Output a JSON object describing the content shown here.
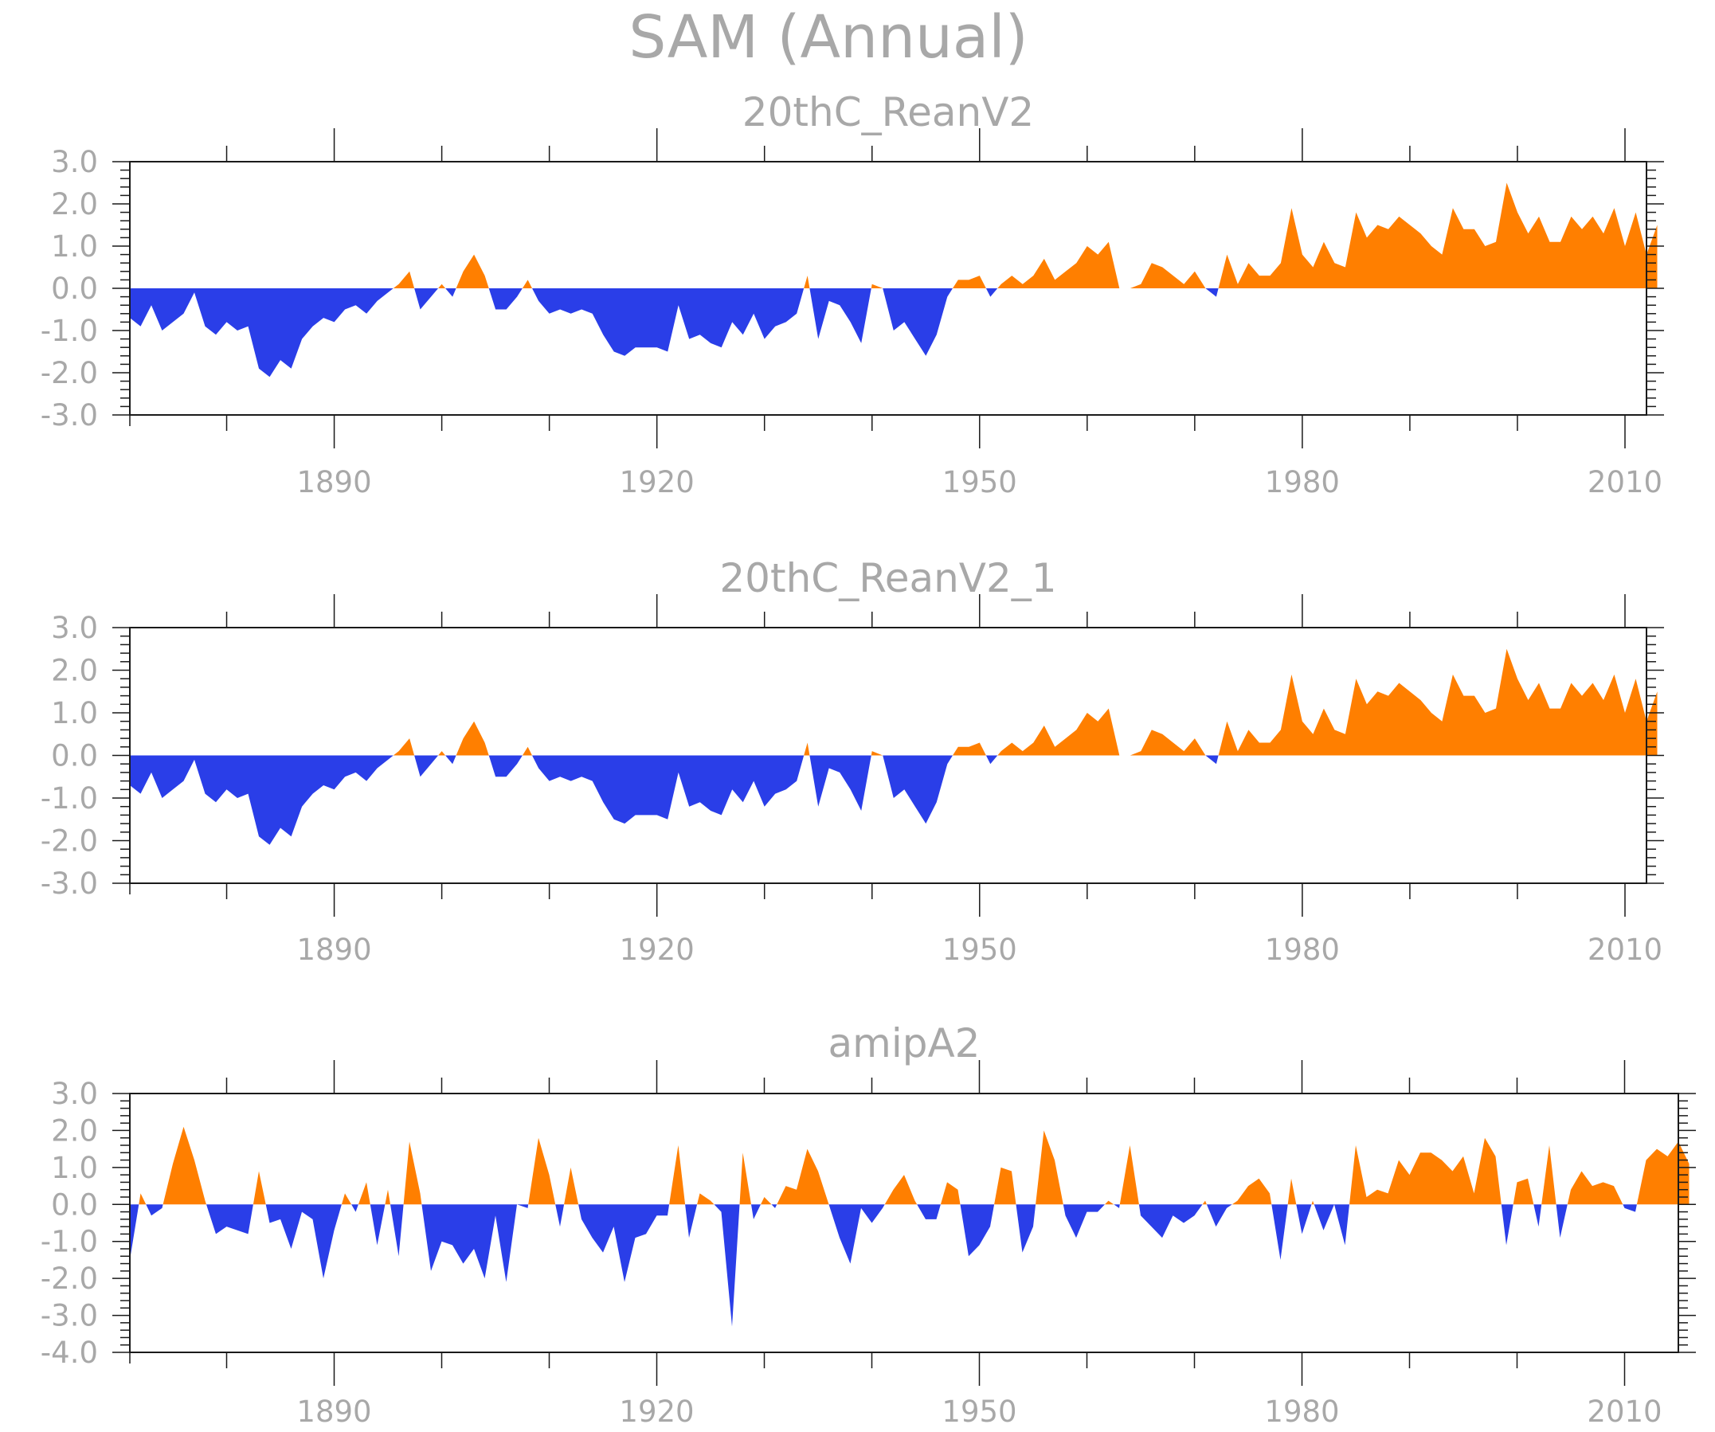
{
  "title": "SAM  (Annual)",
  "colors": {
    "positive": "#ff7f00",
    "negative": "#2a3ee8",
    "text": "#a8a8a8",
    "axis": "#1a1a1a"
  },
  "chart_data": [
    {
      "type": "area",
      "title": "20thC_ReanV2",
      "x_start": 1871,
      "x_ticks": [
        1890,
        1920,
        1950,
        1980,
        2010
      ],
      "x_tick_labels": [
        "1890",
        "1920",
        "1950",
        "1980",
        "2010"
      ],
      "xlim": [
        1871,
        2012
      ],
      "ylim": [
        -3.0,
        3.0
      ],
      "y_ticks": [
        3.0,
        2.0,
        1.0,
        0.0,
        -1.0,
        -2.0,
        -3.0
      ],
      "y_tick_labels": [
        "3.0",
        "2.0",
        "1.0",
        "0.0",
        "-1.0",
        "-2.0",
        "-3.0"
      ],
      "values": [
        -0.7,
        -0.9,
        -0.4,
        -1.0,
        -0.8,
        -0.6,
        -0.1,
        -0.9,
        -1.1,
        -0.8,
        -1.0,
        -0.9,
        -1.9,
        -2.1,
        -1.7,
        -1.9,
        -1.2,
        -0.9,
        -0.7,
        -0.8,
        -0.5,
        -0.4,
        -0.6,
        -0.3,
        -0.1,
        0.1,
        0.4,
        -0.5,
        -0.2,
        0.1,
        -0.2,
        0.4,
        0.8,
        0.3,
        -0.5,
        -0.5,
        -0.2,
        0.2,
        -0.3,
        -0.6,
        -0.5,
        -0.6,
        -0.5,
        -0.6,
        -1.1,
        -1.5,
        -1.6,
        -1.4,
        -1.4,
        -1.4,
        -1.5,
        -0.4,
        -1.2,
        -1.1,
        -1.3,
        -1.4,
        -0.8,
        -1.1,
        -0.6,
        -1.2,
        -0.9,
        -0.8,
        -0.6,
        0.3,
        -1.2,
        -0.3,
        -0.4,
        -0.8,
        -1.3,
        0.1,
        0.0,
        -1.0,
        -0.8,
        -1.2,
        -1.6,
        -1.1,
        -0.2,
        0.2,
        0.2,
        0.3,
        -0.2,
        0.1,
        0.3,
        0.1,
        0.3,
        0.7,
        0.2,
        0.4,
        0.6,
        1.0,
        0.8,
        1.1,
        0.0,
        0.0,
        0.1,
        0.6,
        0.5,
        0.3,
        0.1,
        0.4,
        0.0,
        -0.2,
        0.8,
        0.1,
        0.6,
        0.3,
        0.3,
        0.6,
        1.9,
        0.8,
        0.5,
        1.1,
        0.6,
        0.5,
        1.8,
        1.2,
        1.5,
        1.4,
        1.7,
        1.5,
        1.3,
        1.0,
        0.8,
        1.9,
        1.4,
        1.4,
        1.0,
        1.1,
        2.5,
        1.8,
        1.3,
        1.7,
        1.1,
        1.1,
        1.7,
        1.4,
        1.7,
        1.3,
        1.9,
        1.0,
        1.8,
        0.8,
        1.5
      ]
    },
    {
      "type": "area",
      "title": "20thC_ReanV2_1",
      "x_start": 1871,
      "x_ticks": [
        1890,
        1920,
        1950,
        1980,
        2010
      ],
      "x_tick_labels": [
        "1890",
        "1920",
        "1950",
        "1980",
        "2010"
      ],
      "xlim": [
        1871,
        2012
      ],
      "ylim": [
        -3.0,
        3.0
      ],
      "y_ticks": [
        3.0,
        2.0,
        1.0,
        0.0,
        -1.0,
        -2.0,
        -3.0
      ],
      "y_tick_labels": [
        "3.0",
        "2.0",
        "1.0",
        "0.0",
        "-1.0",
        "-2.0",
        "-3.0"
      ],
      "values": [
        -0.7,
        -0.9,
        -0.4,
        -1.0,
        -0.8,
        -0.6,
        -0.1,
        -0.9,
        -1.1,
        -0.8,
        -1.0,
        -0.9,
        -1.9,
        -2.1,
        -1.7,
        -1.9,
        -1.2,
        -0.9,
        -0.7,
        -0.8,
        -0.5,
        -0.4,
        -0.6,
        -0.3,
        -0.1,
        0.1,
        0.4,
        -0.5,
        -0.2,
        0.1,
        -0.2,
        0.4,
        0.8,
        0.3,
        -0.5,
        -0.5,
        -0.2,
        0.2,
        -0.3,
        -0.6,
        -0.5,
        -0.6,
        -0.5,
        -0.6,
        -1.1,
        -1.5,
        -1.6,
        -1.4,
        -1.4,
        -1.4,
        -1.5,
        -0.4,
        -1.2,
        -1.1,
        -1.3,
        -1.4,
        -0.8,
        -1.1,
        -0.6,
        -1.2,
        -0.9,
        -0.8,
        -0.6,
        0.3,
        -1.2,
        -0.3,
        -0.4,
        -0.8,
        -1.3,
        0.1,
        0.0,
        -1.0,
        -0.8,
        -1.2,
        -1.6,
        -1.1,
        -0.2,
        0.2,
        0.2,
        0.3,
        -0.2,
        0.1,
        0.3,
        0.1,
        0.3,
        0.7,
        0.2,
        0.4,
        0.6,
        1.0,
        0.8,
        1.1,
        0.0,
        0.0,
        0.1,
        0.6,
        0.5,
        0.3,
        0.1,
        0.4,
        0.0,
        -0.2,
        0.8,
        0.1,
        0.6,
        0.3,
        0.3,
        0.6,
        1.9,
        0.8,
        0.5,
        1.1,
        0.6,
        0.5,
        1.8,
        1.2,
        1.5,
        1.4,
        1.7,
        1.5,
        1.3,
        1.0,
        0.8,
        1.9,
        1.4,
        1.4,
        1.0,
        1.1,
        2.5,
        1.8,
        1.3,
        1.7,
        1.1,
        1.1,
        1.7,
        1.4,
        1.7,
        1.3,
        1.9,
        1.0,
        1.8,
        0.8,
        1.5
      ]
    },
    {
      "type": "area",
      "title": "amipA2",
      "x_start": 1871,
      "x_ticks": [
        1890,
        1920,
        1950,
        1980,
        2010
      ],
      "x_tick_labels": [
        "1890",
        "1920",
        "1950",
        "1980",
        "2010"
      ],
      "xlim": [
        1871,
        2015
      ],
      "ylim": [
        -4.0,
        3.0
      ],
      "y_ticks": [
        3.0,
        2.0,
        1.0,
        0.0,
        -1.0,
        -2.0,
        -3.0,
        -4.0
      ],
      "y_tick_labels": [
        "3.0",
        "2.0",
        "1.0",
        "0.0",
        "-1.0",
        "-2.0",
        "-3.0",
        "-4.0"
      ],
      "values": [
        -1.5,
        0.3,
        -0.3,
        -0.1,
        1.1,
        2.1,
        1.2,
        0.1,
        -0.8,
        -0.6,
        -0.7,
        -0.8,
        0.9,
        -0.5,
        -0.4,
        -1.2,
        -0.2,
        -0.4,
        -2.0,
        -0.7,
        0.3,
        -0.2,
        0.6,
        -1.1,
        0.4,
        -1.4,
        1.7,
        0.3,
        -1.8,
        -1.0,
        -1.1,
        -1.6,
        -1.2,
        -2.0,
        -0.3,
        -2.1,
        0.0,
        -0.1,
        1.8,
        0.8,
        -0.6,
        1.0,
        -0.4,
        -0.9,
        -1.3,
        -0.6,
        -2.1,
        -0.9,
        -0.8,
        -0.3,
        -0.3,
        1.6,
        -0.9,
        0.3,
        0.1,
        -0.2,
        -3.3,
        1.4,
        -0.4,
        0.2,
        -0.1,
        0.5,
        0.4,
        1.5,
        0.9,
        0.0,
        -0.9,
        -1.6,
        -0.1,
        -0.5,
        -0.1,
        0.4,
        0.8,
        0.1,
        -0.4,
        -0.4,
        0.6,
        0.4,
        -1.4,
        -1.1,
        -0.6,
        1.0,
        0.9,
        -1.3,
        -0.6,
        2.0,
        1.2,
        -0.3,
        -0.9,
        -0.2,
        -0.2,
        0.1,
        -0.1,
        1.6,
        -0.3,
        -0.6,
        -0.9,
        -0.3,
        -0.5,
        -0.3,
        0.1,
        -0.6,
        -0.1,
        0.1,
        0.5,
        0.7,
        0.3,
        -1.5,
        0.7,
        -0.8,
        0.1,
        -0.7,
        0.0,
        -1.1,
        1.6,
        0.2,
        0.4,
        0.3,
        1.2,
        0.8,
        1.4,
        1.4,
        1.2,
        0.9,
        1.3,
        0.3,
        1.8,
        1.3,
        -1.1,
        0.6,
        0.7,
        -0.6,
        1.6,
        -0.9,
        0.4,
        0.9,
        0.5,
        0.6,
        0.5,
        -0.1,
        -0.2,
        1.2,
        1.5,
        1.3,
        1.7,
        1.1
      ]
    }
  ]
}
